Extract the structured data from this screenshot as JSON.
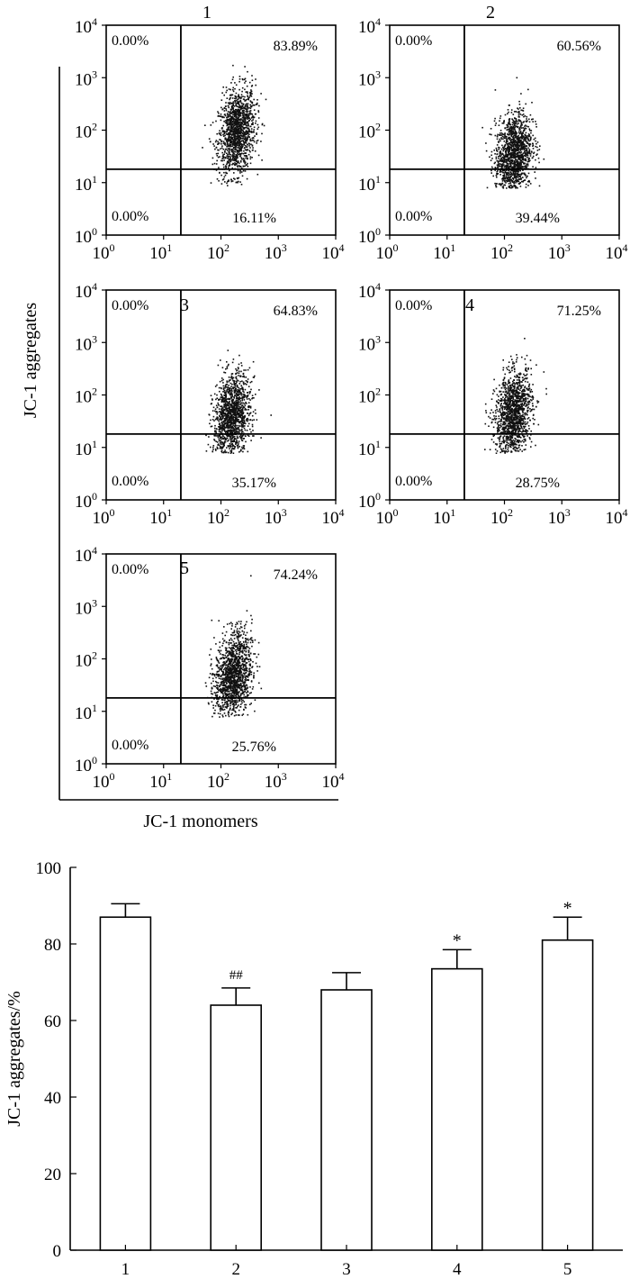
{
  "chart_data": [
    {
      "type": "scatter",
      "x_axis_label": "JC-1 monomers",
      "y_axis_label": "JC-1 aggregates",
      "scale": "log",
      "xlim": [
        1,
        10000
      ],
      "ylim": [
        1,
        10000
      ],
      "tick_labels": [
        "10",
        "10",
        "10",
        "10",
        "10"
      ],
      "tick_exponents": [
        "0",
        "1",
        "2",
        "3",
        "4"
      ],
      "gate": {
        "x": 20,
        "y": 18
      },
      "panels": [
        {
          "title": "1",
          "q_upper_left": "0.00%",
          "q_upper_right": "83.89%",
          "q_lower_left": "0.00%",
          "q_lower_right": "16.11%",
          "cloud": {
            "x_center": 185,
            "y_center": 95
          }
        },
        {
          "title": "2",
          "q_upper_left": "0.00%",
          "q_upper_right": "60.56%",
          "q_lower_left": "0.00%",
          "q_lower_right": "39.44%",
          "cloud": {
            "x_center": 140,
            "y_center": 35
          }
        },
        {
          "title": "3",
          "q_upper_left": "0.00%",
          "q_upper_right": "64.83%",
          "q_lower_left": "0.00%",
          "q_lower_right": "35.17%",
          "cloud": {
            "x_center": 150,
            "y_center": 38
          }
        },
        {
          "title": "4",
          "q_upper_left": "0.00%",
          "q_upper_right": "71.25%",
          "q_lower_left": "0.00%",
          "q_lower_right": "28.75%",
          "cloud": {
            "x_center": 140,
            "y_center": 45
          }
        },
        {
          "title": "5",
          "q_upper_left": "0.00%",
          "q_upper_right": "74.24%",
          "q_lower_left": "0.00%",
          "q_lower_right": "25.76%",
          "cloud": {
            "x_center": 160,
            "y_center": 50
          }
        }
      ]
    },
    {
      "type": "bar",
      "categories": [
        "1",
        "2",
        "3",
        "4",
        "5"
      ],
      "values": [
        87,
        64,
        68,
        73.5,
        81
      ],
      "errors": [
        3.5,
        4.5,
        4.5,
        5,
        6
      ],
      "annotations": [
        "",
        "##",
        "",
        "*",
        "*"
      ],
      "ylabel": "JC-1 aggregates/%",
      "xlabel": "",
      "ylim": [
        0,
        100
      ],
      "yticks": [
        0,
        20,
        40,
        60,
        80,
        100
      ]
    }
  ]
}
